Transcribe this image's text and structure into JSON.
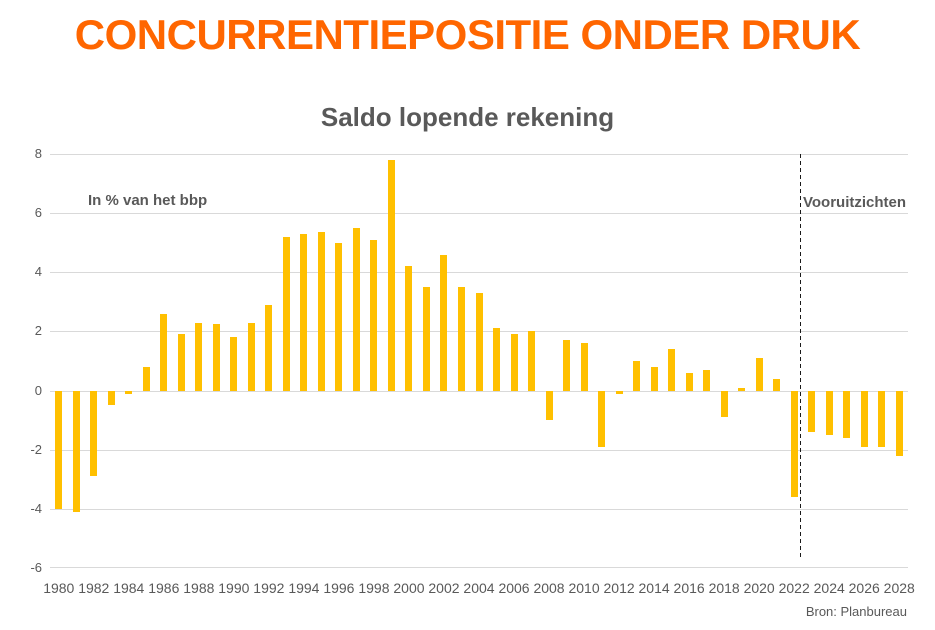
{
  "page": {
    "title": "CONCURRENTIEPOSITIE ONDER DRUK",
    "source": "Bron: Planbureau"
  },
  "theme": {
    "title_color": "#FF6600",
    "bar_color": "#FFC000",
    "text_color": "#595959",
    "grid_color": "#D9D9D9",
    "forecast_line_color": "#1A1A1A",
    "background": "#FFFFFF"
  },
  "chart_data": {
    "type": "bar",
    "title": "Saldo lopende rekening",
    "unit_label": "In % van het bbp",
    "forecast_label": "Vooruitzichten",
    "forecast_start_year": 2023,
    "xlabel": "",
    "ylabel": "In % van het bbp",
    "ylim": [
      -6,
      8
    ],
    "y_ticks": [
      8,
      6,
      4,
      2,
      0,
      -2,
      -4,
      -6
    ],
    "grid": true,
    "legend": false,
    "categories": [
      1980,
      1981,
      1982,
      1983,
      1984,
      1985,
      1986,
      1987,
      1988,
      1989,
      1990,
      1991,
      1992,
      1993,
      1994,
      1995,
      1996,
      1997,
      1998,
      1999,
      2000,
      2001,
      2002,
      2003,
      2004,
      2005,
      2006,
      2007,
      2008,
      2009,
      2010,
      2011,
      2012,
      2013,
      2014,
      2015,
      2016,
      2017,
      2018,
      2019,
      2020,
      2021,
      2022,
      2023,
      2024,
      2025,
      2026,
      2027,
      2028
    ],
    "values": [
      -4.0,
      -4.1,
      -2.9,
      -0.5,
      -0.1,
      0.8,
      2.6,
      1.9,
      2.3,
      2.25,
      1.8,
      2.3,
      2.9,
      5.2,
      5.3,
      5.35,
      5.0,
      5.5,
      5.1,
      7.8,
      4.2,
      3.5,
      4.6,
      3.5,
      3.3,
      2.1,
      1.9,
      2.0,
      -1.0,
      1.7,
      1.6,
      -1.9,
      -0.1,
      1.0,
      0.8,
      1.4,
      0.6,
      0.7,
      -0.9,
      0.1,
      1.1,
      0.4,
      -3.6,
      -1.4,
      -1.5,
      -1.6,
      -1.9,
      -1.9,
      -2.2
    ],
    "x_tick_labels": [
      "1980",
      "1982",
      "1984",
      "1986",
      "1988",
      "1990",
      "1992",
      "1994",
      "1996",
      "1998",
      "2000",
      "2002",
      "2004",
      "2006",
      "2008",
      "2010",
      "2012",
      "2014",
      "2016",
      "2018",
      "2020",
      "2022",
      "2024",
      "2026",
      "2028"
    ]
  }
}
